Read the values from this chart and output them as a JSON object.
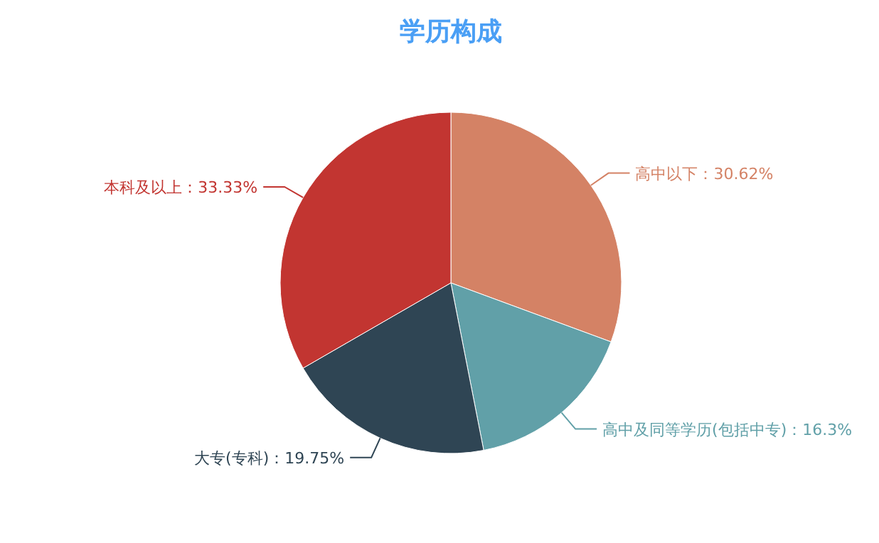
{
  "chart_data": {
    "type": "pie",
    "title": "学历构成",
    "categories": [
      "高中以下",
      "高中及同等学历(包括中专)",
      "大专(专科)",
      "本科及以上"
    ],
    "values": [
      30.62,
      16.3,
      19.75,
      33.33
    ],
    "colors": [
      "#d48265",
      "#61a0a8",
      "#2f4554",
      "#c23531"
    ],
    "value_labels": [
      "：30.62%",
      "：16.3%",
      "：19.75%",
      "：33.33%"
    ]
  }
}
